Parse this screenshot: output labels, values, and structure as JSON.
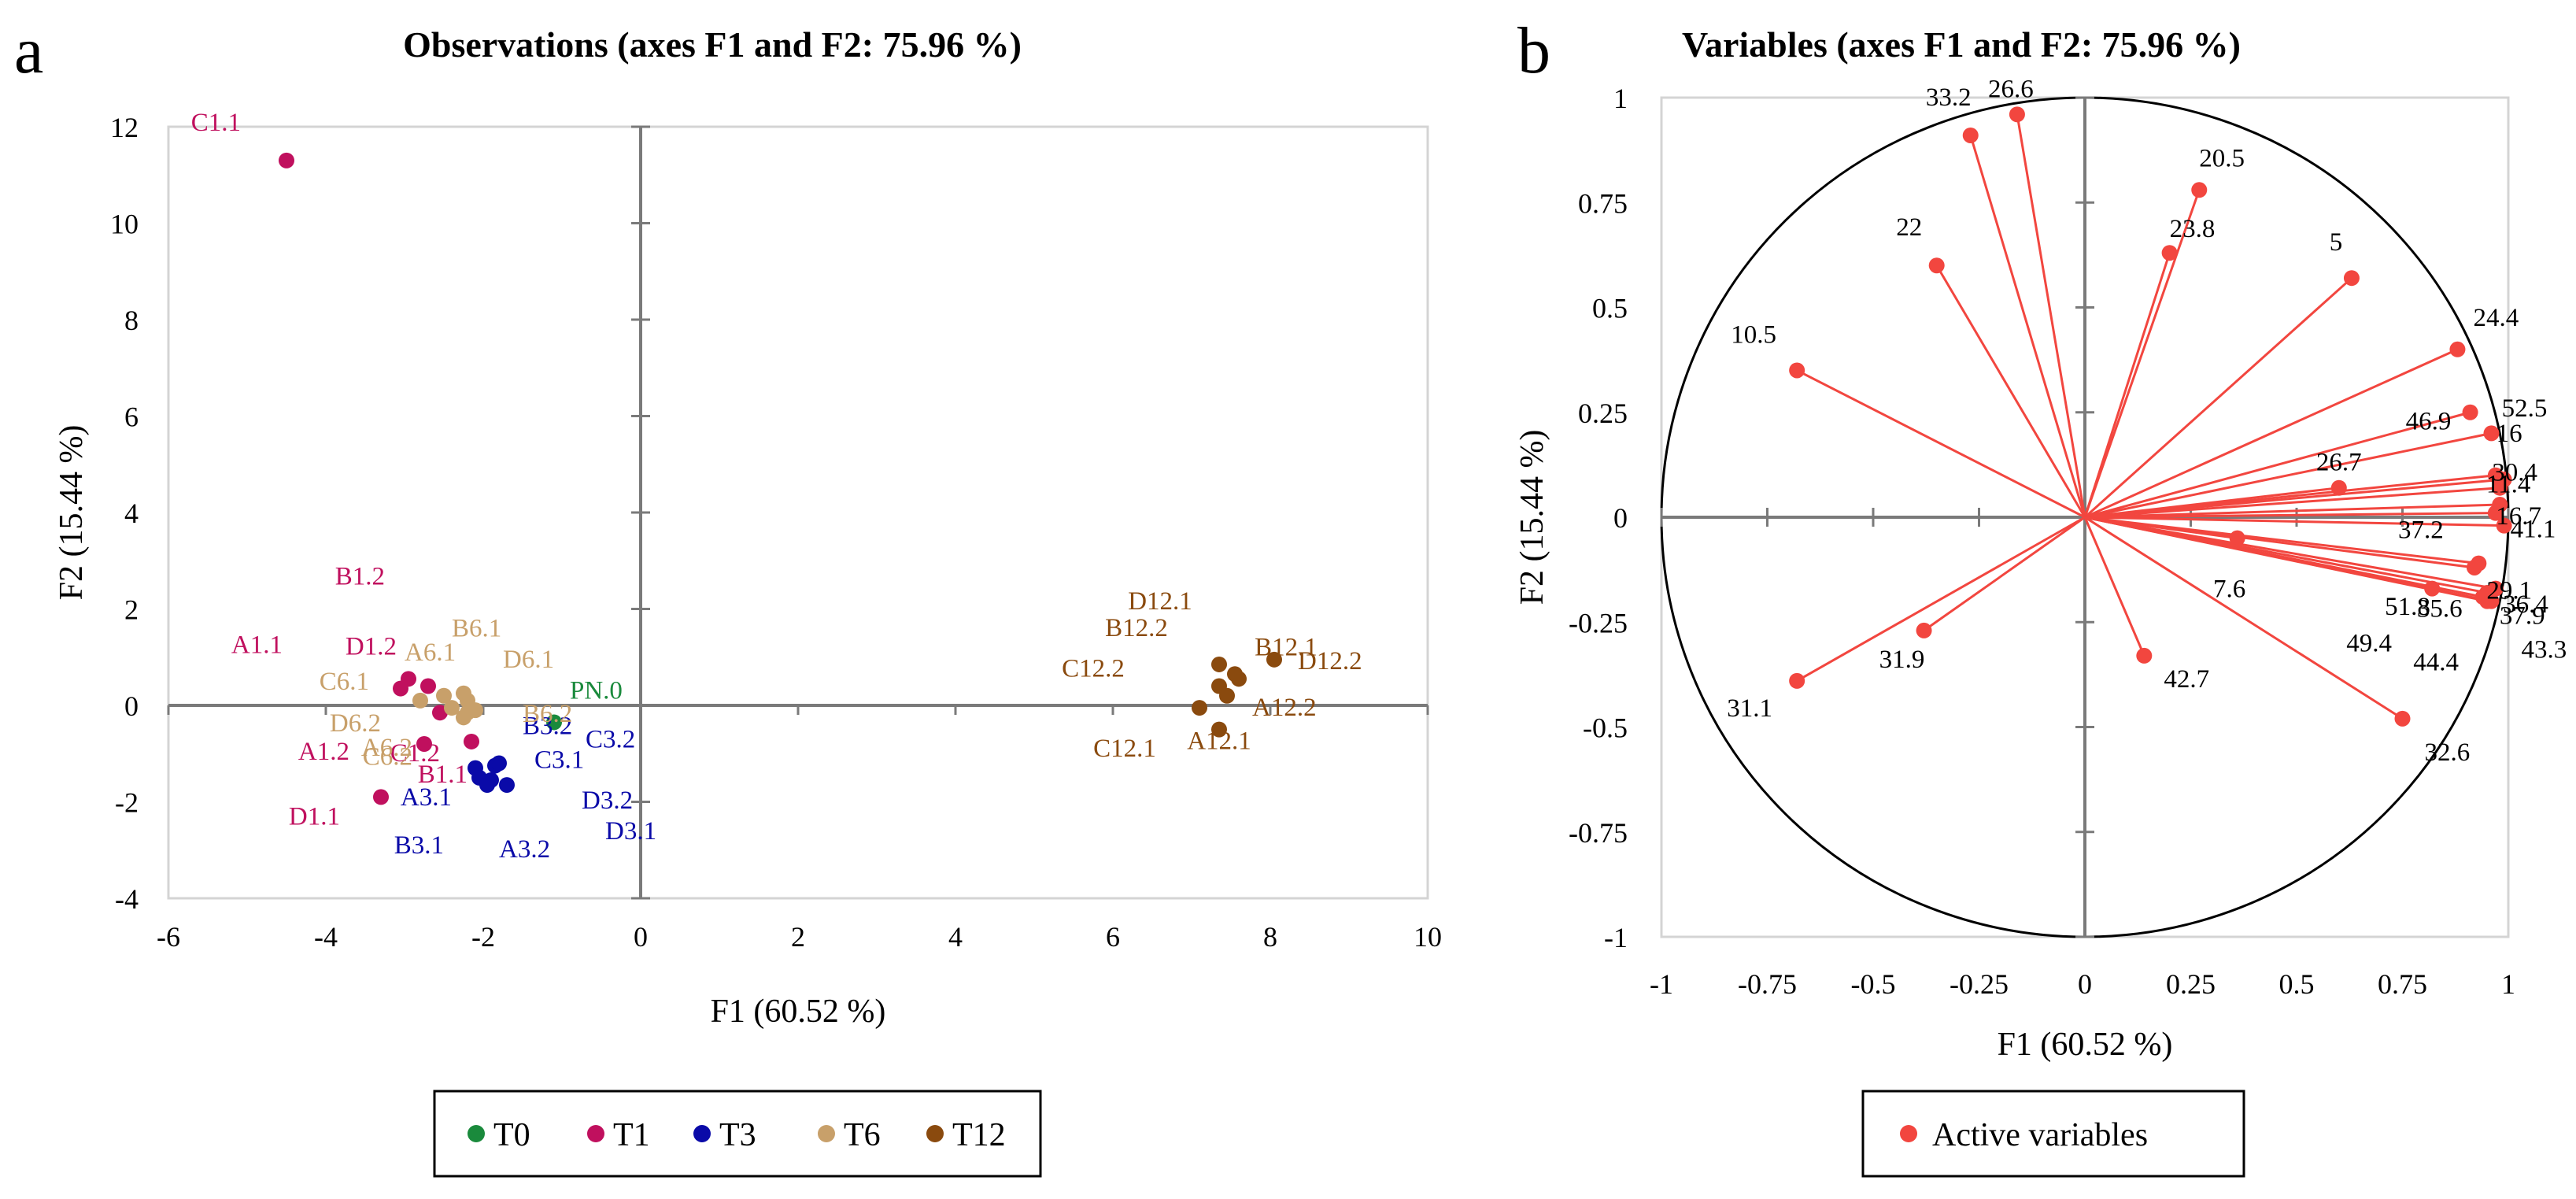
{
  "colors": {
    "T0": "#1a8a3c",
    "T1": "#c0105e",
    "T3": "#0a0aa8",
    "T6": "#c8a06a",
    "T12": "#8a4a0e",
    "active": "#f2463f",
    "axis": "#7a7a7a",
    "text": "#000000"
  },
  "chart_data": [
    {
      "panel": "a",
      "type": "scatter",
      "title": "Observations (axes F1 and F2: 75.96 %)",
      "xlabel": "F1 (60.52 %)",
      "ylabel": "F2 (15.44 %)",
      "xlim": [
        -6,
        10
      ],
      "ylim": [
        -4,
        12
      ],
      "xticks": [
        "-6",
        "-4",
        "-2",
        "0",
        "2",
        "4",
        "6",
        "8",
        "10"
      ],
      "yticks": [
        "-4",
        "-2",
        "0",
        "2",
        "4",
        "6",
        "8",
        "10",
        "12"
      ],
      "legend": [
        "T0",
        "T1",
        "T3",
        "T6",
        "T12"
      ],
      "legend_position": "bottom",
      "points": [
        {
          "label": "PN.0",
          "group": "T0",
          "x": -1.1,
          "y": -0.35
        },
        {
          "label": "C1.1",
          "group": "T1",
          "x": -4.5,
          "y": 11.3
        },
        {
          "label": "B1.2",
          "group": "T1",
          "x": -2.95,
          "y": 0.55
        },
        {
          "label": "A1.1",
          "group": "T1",
          "x": -3.05,
          "y": 0.35
        },
        {
          "label": "D1.2",
          "group": "T1",
          "x": -2.7,
          "y": 0.4
        },
        {
          "label": "C1.2",
          "group": "T1",
          "x": -2.55,
          "y": -0.15
        },
        {
          "label": "A1.2",
          "group": "T1",
          "x": -2.75,
          "y": -0.8
        },
        {
          "label": "B1.1",
          "group": "T1",
          "x": -2.15,
          "y": -0.75
        },
        {
          "label": "D1.1",
          "group": "T1",
          "x": -3.3,
          "y": -1.9
        },
        {
          "label": "A3.1",
          "group": "T3",
          "x": -2.05,
          "y": -1.5
        },
        {
          "label": "B3.1",
          "group": "T3",
          "x": -1.95,
          "y": -1.6
        },
        {
          "label": "B3.2",
          "group": "T3",
          "x": -1.85,
          "y": -1.25
        },
        {
          "label": "C3.1",
          "group": "T3",
          "x": -2.1,
          "y": -1.3
        },
        {
          "label": "C3.2",
          "group": "T3",
          "x": -1.8,
          "y": -1.2
        },
        {
          "label": "A3.2",
          "group": "T3",
          "x": -1.95,
          "y": -1.65
        },
        {
          "label": "D3.2",
          "group": "T3",
          "x": -1.7,
          "y": -1.65
        },
        {
          "label": "D3.1",
          "group": "T3",
          "x": -1.9,
          "y": -1.55
        },
        {
          "label": "B6.1",
          "group": "T6",
          "x": -2.25,
          "y": 0.25
        },
        {
          "label": "A6.1",
          "group": "T6",
          "x": -2.5,
          "y": 0.2
        },
        {
          "label": "D6.1",
          "group": "T6",
          "x": -2.2,
          "y": 0.1
        },
        {
          "label": "C6.1",
          "group": "T6",
          "x": -2.8,
          "y": 0.1
        },
        {
          "label": "D6.2",
          "group": "T6",
          "x": -2.4,
          "y": -0.05
        },
        {
          "label": "A6.2",
          "group": "T6",
          "x": -2.2,
          "y": -0.15
        },
        {
          "label": "B6.2",
          "group": "T6",
          "x": -2.1,
          "y": -0.1
        },
        {
          "label": "C6.2",
          "group": "T6",
          "x": -2.25,
          "y": -0.25
        },
        {
          "label": "D12.1",
          "group": "T12",
          "x": 7.35,
          "y": 0.85
        },
        {
          "label": "B12.2",
          "group": "T12",
          "x": 7.55,
          "y": 0.65
        },
        {
          "label": "B12.1",
          "group": "T12",
          "x": 7.6,
          "y": 0.55
        },
        {
          "label": "D12.2",
          "group": "T12",
          "x": 8.05,
          "y": 0.95
        },
        {
          "label": "C12.2",
          "group": "T12",
          "x": 7.35,
          "y": 0.4
        },
        {
          "label": "A12.2",
          "group": "T12",
          "x": 7.45,
          "y": 0.2
        },
        {
          "label": "C12.1",
          "group": "T12",
          "x": 7.1,
          "y": -0.05
        },
        {
          "label": "A12.1",
          "group": "T12",
          "x": 7.35,
          "y": -0.5
        }
      ]
    },
    {
      "panel": "b",
      "type": "scatter",
      "title": "Variables (axes F1 and F2: 75.96 %)",
      "xlabel": "F1 (60.52 %)",
      "ylabel": "F2 (15.44 %)",
      "xlim": [
        -1,
        1
      ],
      "ylim": [
        -1,
        1
      ],
      "xticks": [
        "-1",
        "-0.75",
        "-0.5",
        "-0.25",
        "0",
        "0.25",
        "0.5",
        "0.75",
        "1"
      ],
      "yticks": [
        "-1",
        "-0.75",
        "-0.5",
        "-0.25",
        "0",
        "0.25",
        "0.5",
        "0.75",
        "1"
      ],
      "legend": [
        "Active variables"
      ],
      "legend_position": "bottom",
      "vectors": [
        {
          "label": "26.6",
          "x": -0.16,
          "y": 0.96
        },
        {
          "label": "33.2",
          "x": -0.27,
          "y": 0.91
        },
        {
          "label": "20.5",
          "x": 0.27,
          "y": 0.78
        },
        {
          "label": "23.8",
          "x": 0.2,
          "y": 0.63
        },
        {
          "label": "22",
          "x": -0.35,
          "y": 0.6
        },
        {
          "label": "5",
          "x": 0.63,
          "y": 0.57
        },
        {
          "label": "10.5",
          "x": -0.68,
          "y": 0.35
        },
        {
          "label": "24.4",
          "x": 0.88,
          "y": 0.4
        },
        {
          "label": "52.5",
          "x": 0.91,
          "y": 0.25
        },
        {
          "label": "46.9",
          "x": 0.96,
          "y": 0.2
        },
        {
          "label": "16",
          "x": 0.99,
          "y": 0.09
        },
        {
          "label": "30.4",
          "x": 0.98,
          "y": 0.07
        },
        {
          "label": "11.4",
          "x": 0.97,
          "y": 0.1
        },
        {
          "label": "16.7",
          "x": 0.98,
          "y": 0.03
        },
        {
          "label": "26.7",
          "x": 0.6,
          "y": 0.07
        },
        {
          "label": "37.2",
          "x": 0.97,
          "y": 0.01
        },
        {
          "label": "41.1",
          "x": 0.99,
          "y": -0.02
        },
        {
          "label": "51.8",
          "x": 0.92,
          "y": -0.12
        },
        {
          "label": "29.1",
          "x": 0.93,
          "y": -0.11
        },
        {
          "label": "7.6",
          "x": 0.36,
          "y": -0.05
        },
        {
          "label": "37.9",
          "x": 0.97,
          "y": -0.17
        },
        {
          "label": "36.4",
          "x": 0.95,
          "y": -0.18
        },
        {
          "label": "35.6",
          "x": 0.94,
          "y": -0.19
        },
        {
          "label": "49.4",
          "x": 0.82,
          "y": -0.17
        },
        {
          "label": "44.4",
          "x": 0.95,
          "y": -0.2
        },
        {
          "label": "43.3",
          "x": 0.96,
          "y": -0.2
        },
        {
          "label": "31.9",
          "x": -0.38,
          "y": -0.27
        },
        {
          "label": "42.7",
          "x": 0.14,
          "y": -0.33
        },
        {
          "label": "31.1",
          "x": -0.68,
          "y": -0.39
        },
        {
          "label": "32.6",
          "x": 0.75,
          "y": -0.48
        }
      ]
    }
  ],
  "panels": {
    "a": {
      "letter": "a"
    },
    "b": {
      "letter": "b"
    }
  }
}
